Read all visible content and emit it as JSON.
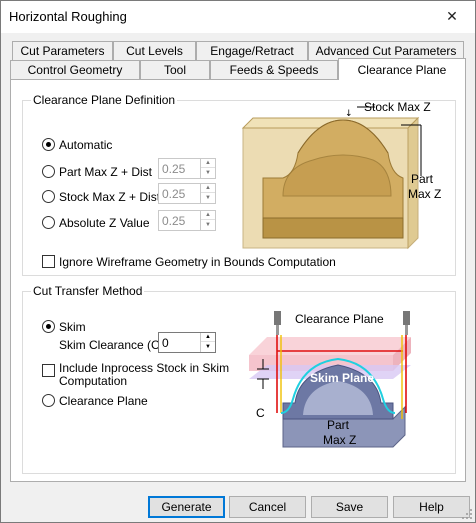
{
  "window": {
    "title": "Horizontal Roughing",
    "close_glyph": "✕"
  },
  "tabs_row1": [
    {
      "label": "Cut Parameters"
    },
    {
      "label": "Cut Levels"
    },
    {
      "label": "Engage/Retract"
    },
    {
      "label": "Advanced Cut Parameters"
    }
  ],
  "tabs_row2": [
    {
      "label": "Control Geometry"
    },
    {
      "label": "Tool"
    },
    {
      "label": "Feeds & Speeds"
    },
    {
      "label": "Clearance Plane",
      "active": true
    }
  ],
  "clearance_def": {
    "title": "Clearance Plane Definition",
    "options": [
      {
        "label": "Automatic",
        "checked": true
      },
      {
        "label": "Part Max Z + Dist",
        "value": "0.25",
        "enabled": false
      },
      {
        "label": "Stock Max Z + Dist",
        "value": "0.25",
        "enabled": false
      },
      {
        "label": "Absolute Z Value",
        "value": "0.25",
        "enabled": false
      }
    ],
    "ignore_wireframe": {
      "label": "Ignore Wireframe Geometry in Bounds Computation",
      "checked": false
    },
    "image_labels": {
      "stock_max_z": "Stock Max Z",
      "part": "Part",
      "max_z": "Max Z"
    }
  },
  "cut_transfer": {
    "title": "Cut Transfer Method",
    "skim": {
      "label": "Skim",
      "checked": true
    },
    "skim_clearance": {
      "label": "Skim Clearance (C)",
      "value": "0"
    },
    "include_inprocess": {
      "label_line1": "Include Inprocess Stock in Skim",
      "label_line2": "Computation",
      "checked": false
    },
    "clearance_plane": {
      "label": "Clearance Plane",
      "checked": false
    },
    "image_labels": {
      "clearance_plane": "Clearance Plane",
      "skim_plane": "Skim Plane",
      "part": "Part",
      "max_z": "Max Z",
      "c": "C"
    }
  },
  "buttons": {
    "generate": "Generate",
    "cancel": "Cancel",
    "save": "Save",
    "help": "Help"
  },
  "colors": {
    "stock_box": "#e8d7a8",
    "part": "#c9a55a",
    "clearance_red": "#e01010",
    "skim_cyan": "#20d0e0",
    "tool_yellow": "#f0c000",
    "default_btn": "#0078d7"
  },
  "icons": {
    "close": "close-icon",
    "grip": "resize-grip-icon",
    "spin_up": "spin-up-icon",
    "spin_down": "spin-down-icon"
  }
}
